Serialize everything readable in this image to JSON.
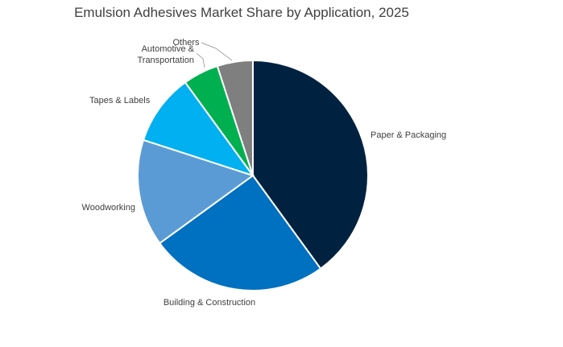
{
  "chart_data": {
    "type": "pie",
    "title": "Emulsion Adhesives Market Share by Application, 2025",
    "start_angle_deg": 0,
    "direction": "clockwise",
    "legend": "none",
    "slices": [
      {
        "label": "Paper & Packaging",
        "value": 40,
        "color": "#002240"
      },
      {
        "label": "Building & Construction",
        "value": 25,
        "color": "#0070C0"
      },
      {
        "label": "Woodworking",
        "value": 15,
        "color": "#5B9BD5"
      },
      {
        "label": "Tapes & Labels",
        "value": 10,
        "color": "#00B0F0"
      },
      {
        "label": "Automotive &\nTransportation",
        "value": 5,
        "color": "#00B050"
      },
      {
        "label": "Others",
        "value": 5,
        "color": "#7F7F7F"
      }
    ]
  }
}
